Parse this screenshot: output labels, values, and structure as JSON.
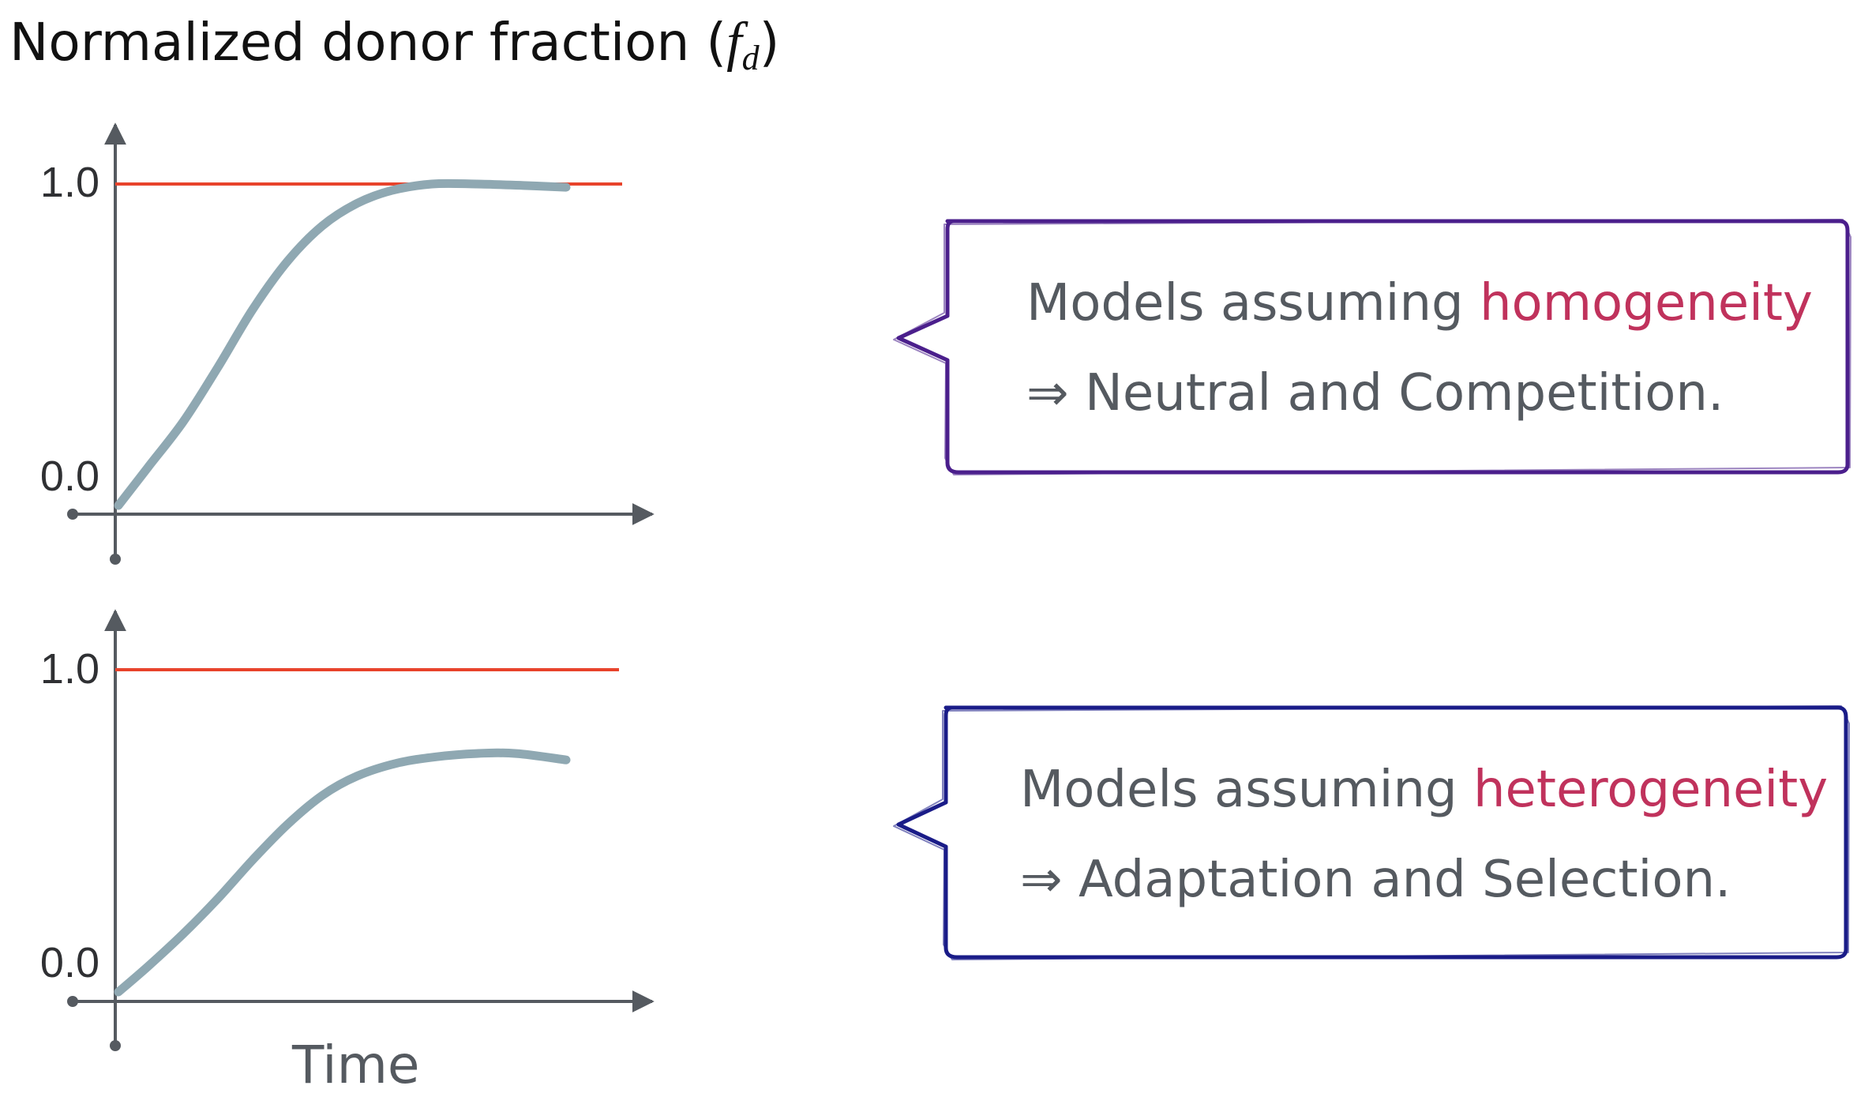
{
  "title": {
    "prefix": "Normalized donor fraction (",
    "symbol": "f",
    "subscript": "d",
    "suffix": ")"
  },
  "colors": {
    "curve": "#8fa8b2",
    "reference": "#e8432b",
    "axis": "#555a60",
    "highlight": "#c0325c",
    "box_top": "#4b1f8c",
    "box_bottom": "#1a1c88"
  },
  "panels": [
    {
      "ticks": {
        "top": "1.0",
        "bottom": "0.0"
      },
      "curve_points": [
        [
          0.0,
          0.0
        ],
        [
          0.06,
          0.12
        ],
        [
          0.13,
          0.26
        ],
        [
          0.2,
          0.43
        ],
        [
          0.27,
          0.61
        ],
        [
          0.34,
          0.76
        ],
        [
          0.41,
          0.87
        ],
        [
          0.48,
          0.94
        ],
        [
          0.55,
          0.98
        ],
        [
          0.63,
          1.0
        ],
        [
          0.72,
          1.0
        ],
        [
          0.82,
          0.995
        ],
        [
          0.9,
          0.99
        ]
      ],
      "callout": {
        "line1_prefix": "Models assuming ",
        "line1_highlight": "homogeneity",
        "line2": "⇒ Neutral and Competition."
      }
    },
    {
      "ticks": {
        "top": "1.0",
        "bottom": "0.0"
      },
      "curve_points": [
        [
          0.0,
          0.0
        ],
        [
          0.06,
          0.08
        ],
        [
          0.13,
          0.18
        ],
        [
          0.2,
          0.29
        ],
        [
          0.27,
          0.41
        ],
        [
          0.34,
          0.52
        ],
        [
          0.41,
          0.61
        ],
        [
          0.48,
          0.67
        ],
        [
          0.56,
          0.71
        ],
        [
          0.64,
          0.73
        ],
        [
          0.72,
          0.74
        ],
        [
          0.8,
          0.74
        ],
        [
          0.9,
          0.72
        ]
      ],
      "callout": {
        "line1_prefix": "Models assuming ",
        "line1_highlight": "heterogeneity",
        "line2": "⇒ Adaptation and Selection."
      }
    }
  ],
  "x_axis_label": "Time"
}
